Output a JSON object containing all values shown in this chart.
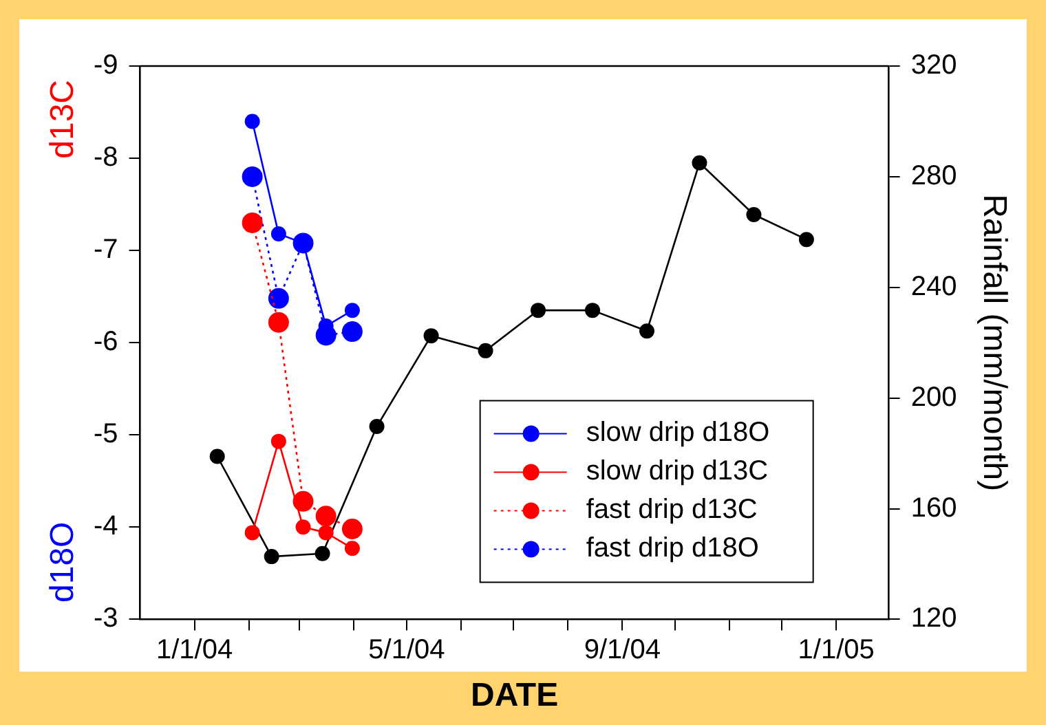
{
  "chart_data": {
    "type": "line",
    "xlabel": "DATE",
    "ylabel": "d18O d13C",
    "y2label": "Rainfall (mm/month)",
    "xlim": [
      "2003-12-01",
      "2005-01-31"
    ],
    "xticks": [
      {
        "value": "2004-01-01",
        "label": "1/1/04"
      },
      {
        "value": "2004-02-01",
        "label": null
      },
      {
        "value": "2004-03-01",
        "label": null
      },
      {
        "value": "2004-04-01",
        "label": null
      },
      {
        "value": "2004-05-01",
        "label": "5/1/04"
      },
      {
        "value": "2004-06-01",
        "label": null
      },
      {
        "value": "2004-07-01",
        "label": null
      },
      {
        "value": "2004-08-01",
        "label": null
      },
      {
        "value": "2004-09-01",
        "label": "9/1/04"
      },
      {
        "value": "2004-10-01",
        "label": null
      },
      {
        "value": "2004-11-01",
        "label": null
      },
      {
        "value": "2004-12-01",
        "label": null
      },
      {
        "value": "2005-01-01",
        "label": "1/1/05"
      }
    ],
    "ylim": [
      -3,
      -9
    ],
    "yticks": [
      -9,
      -8,
      -7,
      -6,
      -5,
      -4,
      -3
    ],
    "y2lim": [
      120,
      320
    ],
    "y2ticks": [
      120,
      160,
      200,
      240,
      280,
      320
    ],
    "grid": false,
    "legend": "bottom right",
    "marker": "circle",
    "series": [
      {
        "name": "slow drip d18O",
        "color": "#0000ff",
        "line_style": "solid",
        "x": [
          "2004-02-03",
          "2004-02-18",
          "2004-03-03",
          "2004-03-16",
          "2004-03-31"
        ],
        "values": [
          -8.4,
          -7.18,
          -7.08,
          -6.18,
          -6.35
        ]
      },
      {
        "name": "slow drip d13C",
        "color": "#ff0000",
        "line_style": "solid",
        "x": [
          "2004-02-03",
          "2004-02-18",
          "2004-03-03",
          "2004-03-16",
          "2004-03-31"
        ],
        "values": [
          -3.94,
          -4.93,
          -4.0,
          -3.94,
          -3.77
        ]
      },
      {
        "name": "fast drip d13C",
        "color": "#ff0000",
        "line_style": "dotted",
        "x": [
          "2004-02-03",
          "2004-02-18",
          "2004-03-03",
          "2004-03-16",
          "2004-03-31"
        ],
        "values": [
          -7.3,
          -6.22,
          -4.28,
          -4.12,
          -3.98
        ]
      },
      {
        "name": "fast drip d18O",
        "color": "#0000ff",
        "line_style": "dotted",
        "x": [
          "2004-02-03",
          "2004-02-18",
          "2004-03-03",
          "2004-03-16",
          "2004-03-31"
        ],
        "values": [
          -7.8,
          -6.48,
          -7.08,
          -6.08,
          -6.12
        ]
      },
      {
        "color": "#000000",
        "line_style": "solid",
        "axis": "y2",
        "x": [
          "2004-01-14",
          "2004-02-14",
          "2004-03-14",
          "2004-04-14",
          "2004-05-15",
          "2004-06-15",
          "2004-07-15",
          "2004-08-15",
          "2004-09-15",
          "2004-10-15",
          "2004-11-15",
          "2004-12-15"
        ],
        "values": [
          178.9,
          142.7,
          143.8,
          189.7,
          222.5,
          217.1,
          231.7,
          231.7,
          224.2,
          285,
          266.3,
          257.3
        ]
      }
    ]
  }
}
